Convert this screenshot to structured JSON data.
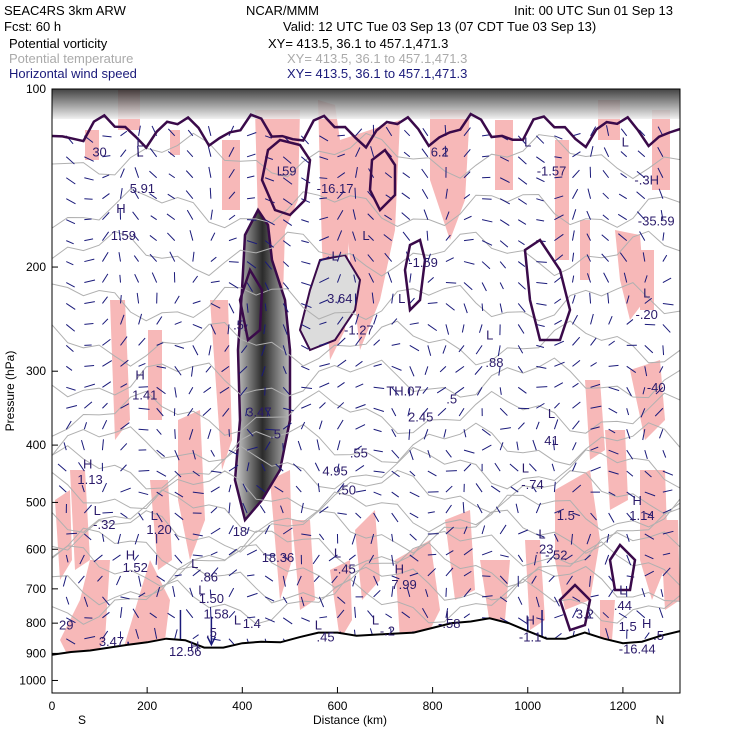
{
  "header": {
    "model": "SEAC4RS  3km ARW",
    "org": "NCAR/MMM",
    "init": "Init: 00 UTC Sun 01 Sep 13",
    "fcst": "Fcst:   60 h",
    "valid": "Valid: 12 UTC Tue 03 Sep 13 (07 CDT Tue 03 Sep 13)"
  },
  "fields": [
    {
      "name": "Potential vorticity",
      "xy": "XY= 413.5, 36.1 to 457.1,471.3",
      "color": "#000000"
    },
    {
      "name": "Potential temperature",
      "xy": "XY= 413.5, 36.1 to 457.1,471.3",
      "color": "#aaaaaa"
    },
    {
      "name": "Horizontal wind speed",
      "xy": "XY= 413.5, 36.1 to 457.1,471.3",
      "color": "#1a1a7a"
    }
  ],
  "chart_data": {
    "type": "heatmap",
    "title": "",
    "xlabel": "Distance (km)",
    "ylabel": "Pressure (hPa)",
    "xlim": [
      0,
      1320
    ],
    "ylim": [
      1050,
      100
    ],
    "y_scale": "log",
    "x_ticks": [
      0,
      200,
      400,
      600,
      800,
      1000,
      1200
    ],
    "y_ticks": [
      100,
      200,
      300,
      400,
      500,
      600,
      700,
      800,
      900,
      1000
    ],
    "x_end_labels": {
      "left": "S",
      "right": "N"
    },
    "colors": {
      "pv_fill": "#f7b8b8",
      "pv_core": "#555555",
      "terrain": "#000000",
      "theta": "#b0b0b0",
      "contour": "#3a0a4a",
      "wind": "#1a1a7a"
    },
    "surface_profile": [
      [
        0,
        905
      ],
      [
        40,
        895
      ],
      [
        80,
        890
      ],
      [
        120,
        880
      ],
      [
        160,
        870
      ],
      [
        200,
        862
      ],
      [
        240,
        850
      ],
      [
        280,
        855
      ],
      [
        320,
        880
      ],
      [
        360,
        880
      ],
      [
        400,
        865
      ],
      [
        440,
        860
      ],
      [
        480,
        862
      ],
      [
        520,
        845
      ],
      [
        560,
        830
      ],
      [
        600,
        830
      ],
      [
        640,
        840
      ],
      [
        700,
        835
      ],
      [
        760,
        830
      ],
      [
        800,
        815
      ],
      [
        840,
        800
      ],
      [
        880,
        795
      ],
      [
        920,
        785
      ],
      [
        960,
        800
      ],
      [
        1000,
        825
      ],
      [
        1040,
        850
      ],
      [
        1080,
        850
      ],
      [
        1120,
        830
      ],
      [
        1160,
        850
      ],
      [
        1200,
        865
      ],
      [
        1240,
        860
      ],
      [
        1280,
        840
      ],
      [
        1320,
        825
      ]
    ],
    "annotations": [
      {
        "text": "30",
        "x": 100,
        "p": 130
      },
      {
        "text": "L",
        "x": 185,
        "p": 125
      },
      {
        "text": "5.91",
        "x": 190,
        "p": 150
      },
      {
        "text": "H",
        "x": 145,
        "p": 162
      },
      {
        "text": "1.59",
        "x": 150,
        "p": 180
      },
      {
        "text": "H",
        "x": 185,
        "p": 310
      },
      {
        "text": "1.41",
        "x": 195,
        "p": 335
      },
      {
        "text": "H",
        "x": 75,
        "p": 438
      },
      {
        "text": "1.13",
        "x": 80,
        "p": 465
      },
      {
        "text": "L",
        "x": 95,
        "p": 525
      },
      {
        "text": "-.32",
        "x": 110,
        "p": 555
      },
      {
        "text": "L",
        "x": 215,
        "p": 535
      },
      {
        "text": "1.20",
        "x": 225,
        "p": 565
      },
      {
        "text": "H",
        "x": 165,
        "p": 625
      },
      {
        "text": "1.52",
        "x": 175,
        "p": 655
      },
      {
        "text": "L",
        "x": 300,
        "p": 645
      },
      {
        "text": ".86",
        "x": 330,
        "p": 680
      },
      {
        "text": "L",
        "x": 315,
        "p": 715
      },
      {
        "text": "1.50",
        "x": 335,
        "p": 740
      },
      {
        "text": "1.58",
        "x": 345,
        "p": 785
      },
      {
        "text": "L",
        "x": 390,
        "p": 805
      },
      {
        "text": "1.4",
        "x": 420,
        "p": 815
      },
      {
        "text": ".5",
        "x": 335,
        "p": 845
      },
      {
        "text": "H",
        "x": 300,
        "p": 890
      },
      {
        "text": "12.56",
        "x": 280,
        "p": 910
      },
      {
        "text": "29",
        "x": 30,
        "p": 820
      },
      {
        "text": "3.47",
        "x": 125,
        "p": 875
      },
      {
        "text": ".5",
        "x": 392,
        "p": 255
      },
      {
        "text": "3.47",
        "x": 435,
        "p": 358
      },
      {
        "text": ".5",
        "x": 470,
        "p": 390
      },
      {
        "text": "18",
        "x": 395,
        "p": 570
      },
      {
        "text": "18.36",
        "x": 475,
        "p": 630
      },
      {
        "text": "4.95",
        "x": 595,
        "p": 450
      },
      {
        "text": ".50",
        "x": 620,
        "p": 485
      },
      {
        "text": ".55",
        "x": 645,
        "p": 420
      },
      {
        "text": "L",
        "x": 595,
        "p": 195
      },
      {
        "text": "3.64",
        "x": 605,
        "p": 230
      },
      {
        "text": "-1.27",
        "x": 645,
        "p": 260
      },
      {
        "text": "L",
        "x": 660,
        "p": 180
      },
      {
        "text": "-16.17",
        "x": 595,
        "p": 150
      },
      {
        "text": ".59",
        "x": 495,
        "p": 140
      },
      {
        "text": "L",
        "x": 735,
        "p": 230
      },
      {
        "text": "-1.59",
        "x": 780,
        "p": 200
      },
      {
        "text": "TH.07",
        "x": 740,
        "p": 330
      },
      {
        "text": "2.45",
        "x": 775,
        "p": 365
      },
      {
        "text": ".5",
        "x": 840,
        "p": 340
      },
      {
        "text": "L",
        "x": 920,
        "p": 265
      },
      {
        "text": ".88",
        "x": 930,
        "p": 295
      },
      {
        "text": "L",
        "x": 600,
        "p": 620
      },
      {
        "text": "-.45",
        "x": 615,
        "p": 660
      },
      {
        "text": "H",
        "x": 730,
        "p": 660
      },
      {
        "text": "7.99",
        "x": 740,
        "p": 700
      },
      {
        "text": "L",
        "x": 680,
        "p": 805
      },
      {
        "text": "-.2",
        "x": 705,
        "p": 840
      },
      {
        "text": "L",
        "x": 560,
        "p": 820
      },
      {
        "text": ".45",
        "x": 575,
        "p": 860
      },
      {
        "text": "L",
        "x": 835,
        "p": 790
      },
      {
        "text": "-.58",
        "x": 835,
        "p": 815
      },
      {
        "text": "L",
        "x": 1050,
        "p": 360
      },
      {
        "text": "41",
        "x": 1050,
        "p": 400
      },
      {
        "text": "L",
        "x": 995,
        "p": 445
      },
      {
        "text": "-.74",
        "x": 1010,
        "p": 475
      },
      {
        "text": "L",
        "x": 1030,
        "p": 575
      },
      {
        "text": ".23",
        "x": 1035,
        "p": 610
      },
      {
        "text": "-.52",
        "x": 1060,
        "p": 625
      },
      {
        "text": "1.5",
        "x": 1080,
        "p": 535
      },
      {
        "text": "H",
        "x": 1230,
        "p": 505
      },
      {
        "text": "1.14",
        "x": 1240,
        "p": 535
      },
      {
        "text": "L",
        "x": 1200,
        "p": 715
      },
      {
        "text": ".44",
        "x": 1200,
        "p": 760
      },
      {
        "text": "3.2",
        "x": 1120,
        "p": 785
      },
      {
        "text": "H",
        "x": 1005,
        "p": 805
      },
      {
        "text": "-1.1",
        "x": 1005,
        "p": 860
      },
      {
        "text": "1.5",
        "x": 1210,
        "p": 825
      },
      {
        "text": "H",
        "x": 1250,
        "p": 815
      },
      {
        "text": ".5",
        "x": 1275,
        "p": 855
      },
      {
        "text": "-16.44",
        "x": 1230,
        "p": 900
      },
      {
        "text": "L",
        "x": 1205,
        "p": 125
      },
      {
        "text": "-.3H",
        "x": 1250,
        "p": 145
      },
      {
        "text": "-35.59",
        "x": 1270,
        "p": 170
      },
      {
        "text": "L",
        "x": 1250,
        "p": 225
      },
      {
        "text": "-.20",
        "x": 1250,
        "p": 245
      },
      {
        "text": "-40",
        "x": 1270,
        "p": 325
      },
      {
        "text": "L",
        "x": 1000,
        "p": 125
      },
      {
        "text": "-1.57",
        "x": 1050,
        "p": 140
      },
      {
        "text": "6.2",
        "x": 815,
        "p": 130
      },
      {
        "text": "L",
        "x": 480,
        "p": 140
      },
      {
        "text": "L",
        "x": 185,
        "p": 130
      }
    ]
  }
}
